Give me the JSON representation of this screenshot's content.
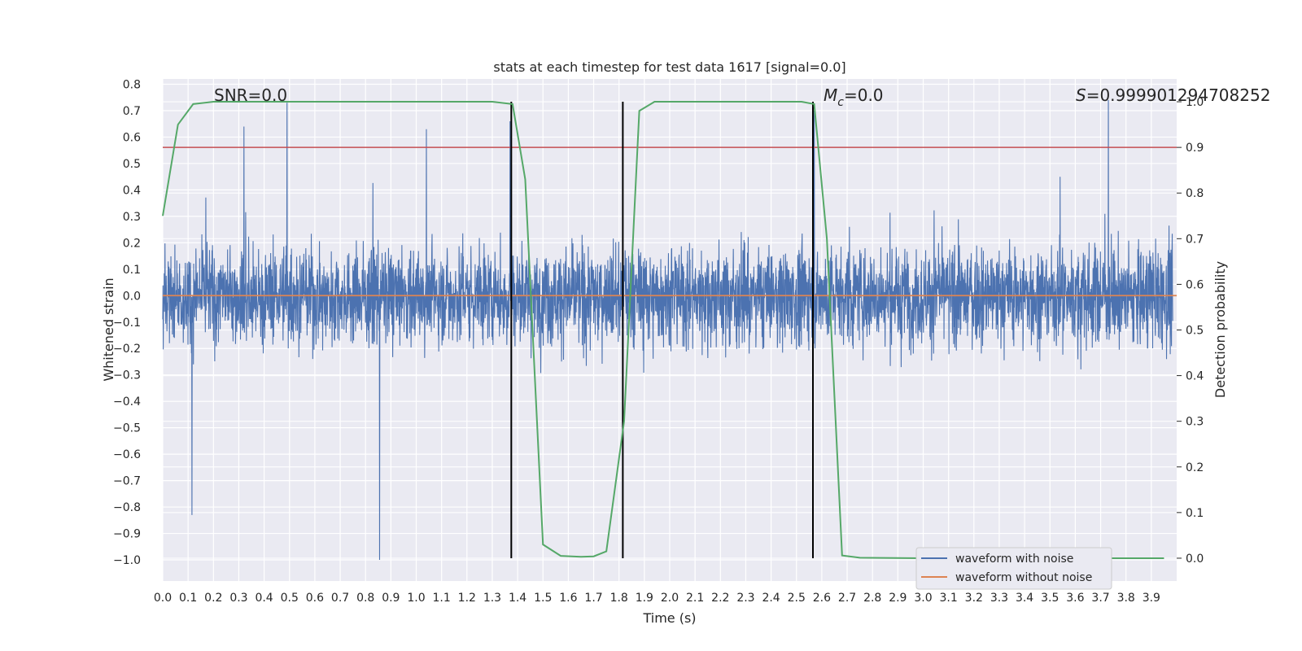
{
  "chart_data": {
    "type": "line",
    "title": "stats at each timestep for test data 1617 [signal=0.0]",
    "xlabel": "Time (s)",
    "ylabel_left": "Whitened strain",
    "ylabel_right": "Detection probability",
    "xlim": [
      0.0,
      4.0
    ],
    "ylim_left": [
      -1.08,
      0.82
    ],
    "ylim_right": [
      -0.05,
      1.05
    ],
    "x_ticks": [
      "0.0",
      "0.1",
      "0.2",
      "0.3",
      "0.4",
      "0.5",
      "0.6",
      "0.7",
      "0.8",
      "0.9",
      "1.0",
      "1.1",
      "1.2",
      "1.3",
      "1.4",
      "1.5",
      "1.6",
      "1.7",
      "1.8",
      "1.9",
      "2.0",
      "2.1",
      "2.2",
      "2.3",
      "2.4",
      "2.5",
      "2.6",
      "2.7",
      "2.8",
      "2.9",
      "3.0",
      "3.1",
      "3.2",
      "3.3",
      "3.4",
      "3.5",
      "3.6",
      "3.7",
      "3.8",
      "3.9"
    ],
    "y_ticks_left": [
      "0.8",
      "0.7",
      "0.6",
      "0.5",
      "0.4",
      "0.3",
      "0.2",
      "0.1",
      "0.0",
      "−0.1",
      "−0.2",
      "−0.3",
      "−0.4",
      "−0.5",
      "−0.6",
      "−0.7",
      "−0.8",
      "−0.9",
      "−1.0"
    ],
    "y_ticks_right": [
      "1.0",
      "0.9",
      "0.8",
      "0.7",
      "0.6",
      "0.5",
      "0.4",
      "0.3",
      "0.2",
      "0.1",
      "0.0"
    ],
    "annotations": {
      "snr": "SNR=0.0",
      "mc_symbol": "M",
      "mc_sub": "c",
      "mc_value": "=0.0",
      "s_symbol": "S",
      "s_value": "=0.999901294708252"
    },
    "threshold": {
      "value": 0.9,
      "axis": "right",
      "color": "#c44e52"
    },
    "detection_windows": [
      1.375,
      1.815,
      2.565
    ],
    "noisy_waveform": {
      "name": "waveform with noise",
      "color": "#4c72b0",
      "samples": 4096,
      "envelope_approx": 0.5,
      "peaks": [
        {
          "t": 0.115,
          "v": -0.83
        },
        {
          "t": 0.32,
          "v": 0.64
        },
        {
          "t": 0.49,
          "v": 0.73
        },
        {
          "t": 0.855,
          "v": -1.0
        },
        {
          "t": 1.04,
          "v": 0.63
        },
        {
          "t": 1.37,
          "v": 0.66
        },
        {
          "t": 2.57,
          "v": 0.7
        },
        {
          "t": 3.73,
          "v": 0.74
        }
      ]
    },
    "clean_waveform": {
      "name": "waveform without noise",
      "color": "#dd8452",
      "value": 0.0
    },
    "detection_probability": {
      "color": "#55a868",
      "x": [
        0.0,
        0.06,
        0.12,
        0.2,
        0.3,
        0.5,
        1.0,
        1.3,
        1.38,
        1.43,
        1.5,
        1.57,
        1.65,
        1.7,
        1.75,
        1.82,
        1.88,
        1.94,
        2.0,
        2.3,
        2.52,
        2.57,
        2.62,
        2.68,
        2.75,
        3.0,
        3.5,
        3.95
      ],
      "y": [
        0.75,
        0.95,
        0.995,
        1.0,
        1.0,
        1.0,
        1.0,
        1.0,
        0.995,
        0.83,
        0.03,
        0.005,
        0.003,
        0.004,
        0.015,
        0.3,
        0.98,
        1.0,
        1.0,
        1.0,
        1.0,
        0.995,
        0.7,
        0.006,
        0.001,
        0.0,
        0.0,
        0.0
      ]
    },
    "legend": {
      "position": "lower right",
      "entries": [
        "waveform with noise",
        "waveform without noise"
      ]
    },
    "style": {
      "plot_background": "#eaeaf2",
      "grid_color": "#ffffff",
      "marker_line_color": "#000000"
    }
  }
}
